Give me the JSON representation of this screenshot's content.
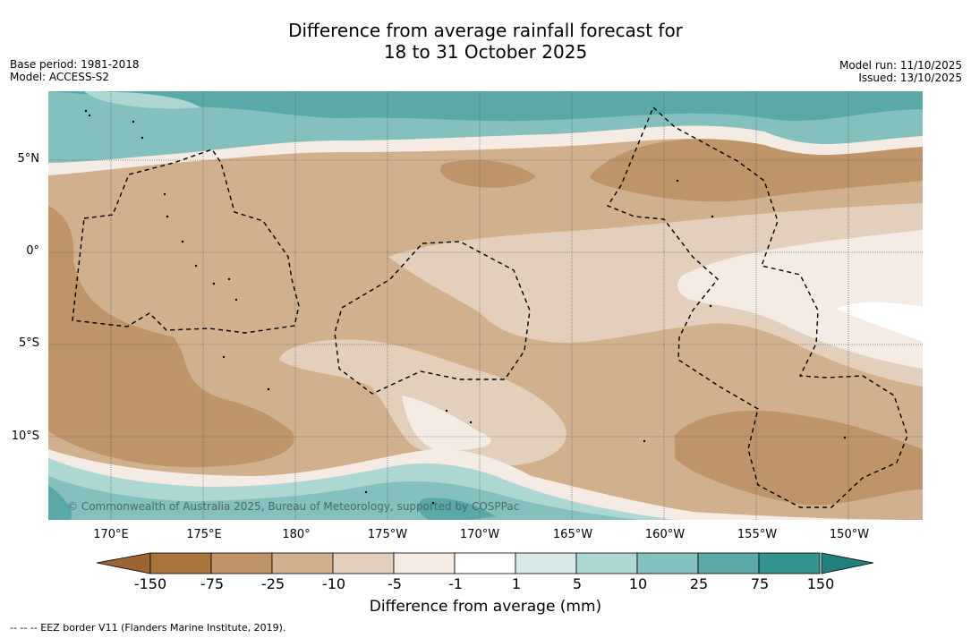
{
  "title": {
    "line1": "Difference from average rainfall forecast for",
    "line2": "18 to 31 October 2025"
  },
  "meta": {
    "base_period": "Base period: 1981-2018",
    "model": "Model: ACCESS-S2",
    "model_run": "Model run: 11/10/2025",
    "issued": "Issued: 13/10/2025"
  },
  "map": {
    "lon_labels": [
      "170°E",
      "175°E",
      "180°",
      "175°W",
      "170°W",
      "165°W",
      "160°W",
      "155°W",
      "150°W"
    ],
    "lat_labels": [
      "5°N",
      "0°",
      "5°S",
      "10°S"
    ],
    "copyright": "© Commonwealth of Australia 2025, Bureau of Meteorology, supported by COSPPac"
  },
  "legend": {
    "ticks": [
      "-150",
      "-75",
      "-25",
      "-10",
      "-5",
      "-1",
      "1",
      "5",
      "10",
      "25",
      "75",
      "150"
    ],
    "colors": [
      "#9a6534",
      "#a8733d",
      "#bf9468",
      "#d1b08e",
      "#e3d0bc",
      "#f3ebe4",
      "#ffffff",
      "#d6e9e6",
      "#add7d3",
      "#84c0bd",
      "#5ba9a7",
      "#33948f",
      "#23807d"
    ],
    "label": "Difference from average (mm)"
  },
  "footnote": "--  --  -- EEZ border V11 (Flanders Marine Institute, 2019)."
}
